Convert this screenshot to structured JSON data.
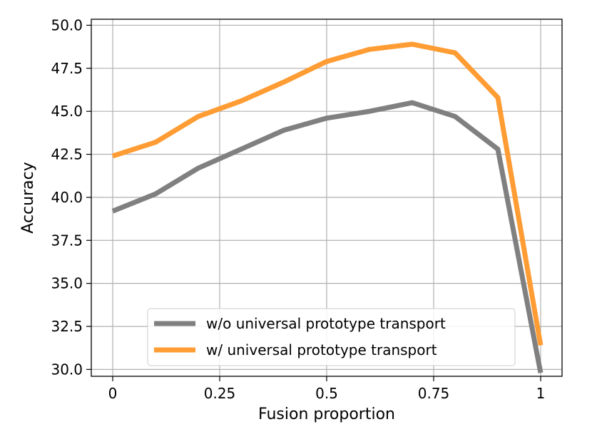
{
  "chart_data": {
    "type": "line",
    "xlabel": "Fusion proportion",
    "ylabel": "Accuracy",
    "x": [
      0,
      0.1,
      0.2,
      0.3,
      0.4,
      0.5,
      0.6,
      0.7,
      0.8,
      0.9,
      1.0
    ],
    "xlim": [
      -0.05,
      1.05
    ],
    "ylim": [
      29.6,
      50.35
    ],
    "xticks": [
      0,
      0.25,
      0.5,
      0.75,
      1.0
    ],
    "xtick_labels": [
      "0",
      "0.25",
      "0.5",
      "0.75",
      "1"
    ],
    "yticks": [
      30.0,
      32.5,
      35.0,
      37.5,
      40.0,
      42.5,
      45.0,
      47.5,
      50.0
    ],
    "ytick_labels": [
      "30.0",
      "32.5",
      "35.0",
      "37.5",
      "40.0",
      "42.5",
      "45.0",
      "47.5",
      "50.0"
    ],
    "grid": true,
    "legend_position": "bottom-center",
    "series": [
      {
        "name": "w/o universal prototype transport",
        "color": "#808080",
        "values": [
          39.2,
          40.2,
          41.7,
          42.8,
          43.9,
          44.6,
          45.0,
          45.5,
          44.7,
          42.8,
          29.8
        ]
      },
      {
        "name": "w/ universal prototype transport",
        "color": "#ff9c33",
        "values": [
          42.4,
          43.2,
          44.7,
          45.6,
          46.7,
          47.9,
          48.6,
          48.9,
          48.4,
          45.8,
          31.4
        ]
      }
    ]
  }
}
